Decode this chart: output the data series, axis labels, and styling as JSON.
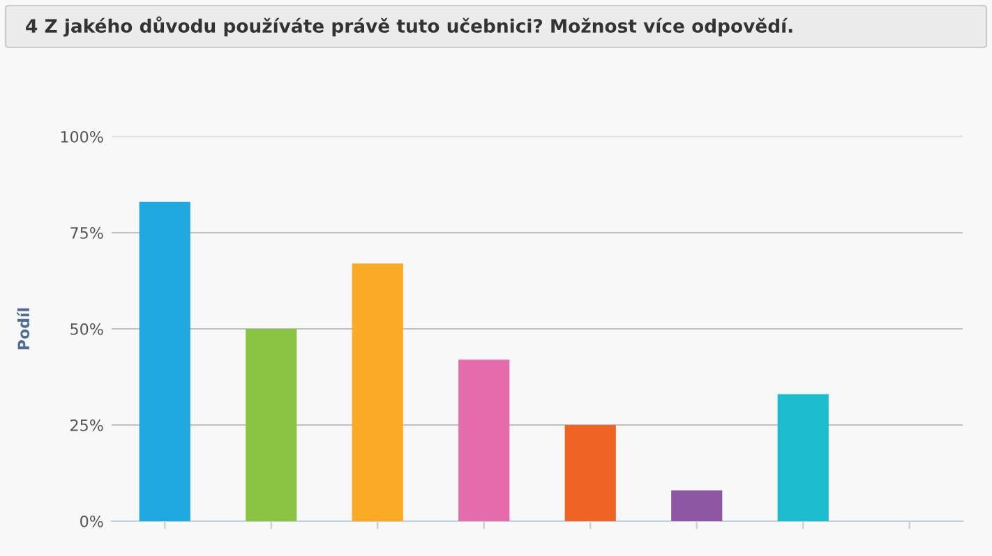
{
  "chart_data": {
    "type": "bar",
    "title": "4 Z jakého důvodu používáte právě tuto učebnici? Možnost více odpovědí.",
    "ylabel": "Podíl",
    "categories": [
      null,
      null,
      null,
      null,
      null,
      null,
      null,
      null
    ],
    "values": [
      83,
      50,
      67,
      42,
      25,
      8,
      33,
      0
    ],
    "colors": [
      "#1fa8e0",
      "#8bc443",
      "#fbaa25",
      "#e56dad",
      "#ef6425",
      "#8e57a4",
      "#1ebccf",
      "#999999"
    ],
    "ylim": [
      0,
      100
    ],
    "yticks": [
      {
        "value": 0,
        "label": "0%"
      },
      {
        "value": 25,
        "label": "25%"
      },
      {
        "value": 50,
        "label": "50%"
      },
      {
        "value": 75,
        "label": "75%"
      },
      {
        "value": 100,
        "label": "100%"
      }
    ],
    "grid": "y",
    "legend": false
  }
}
